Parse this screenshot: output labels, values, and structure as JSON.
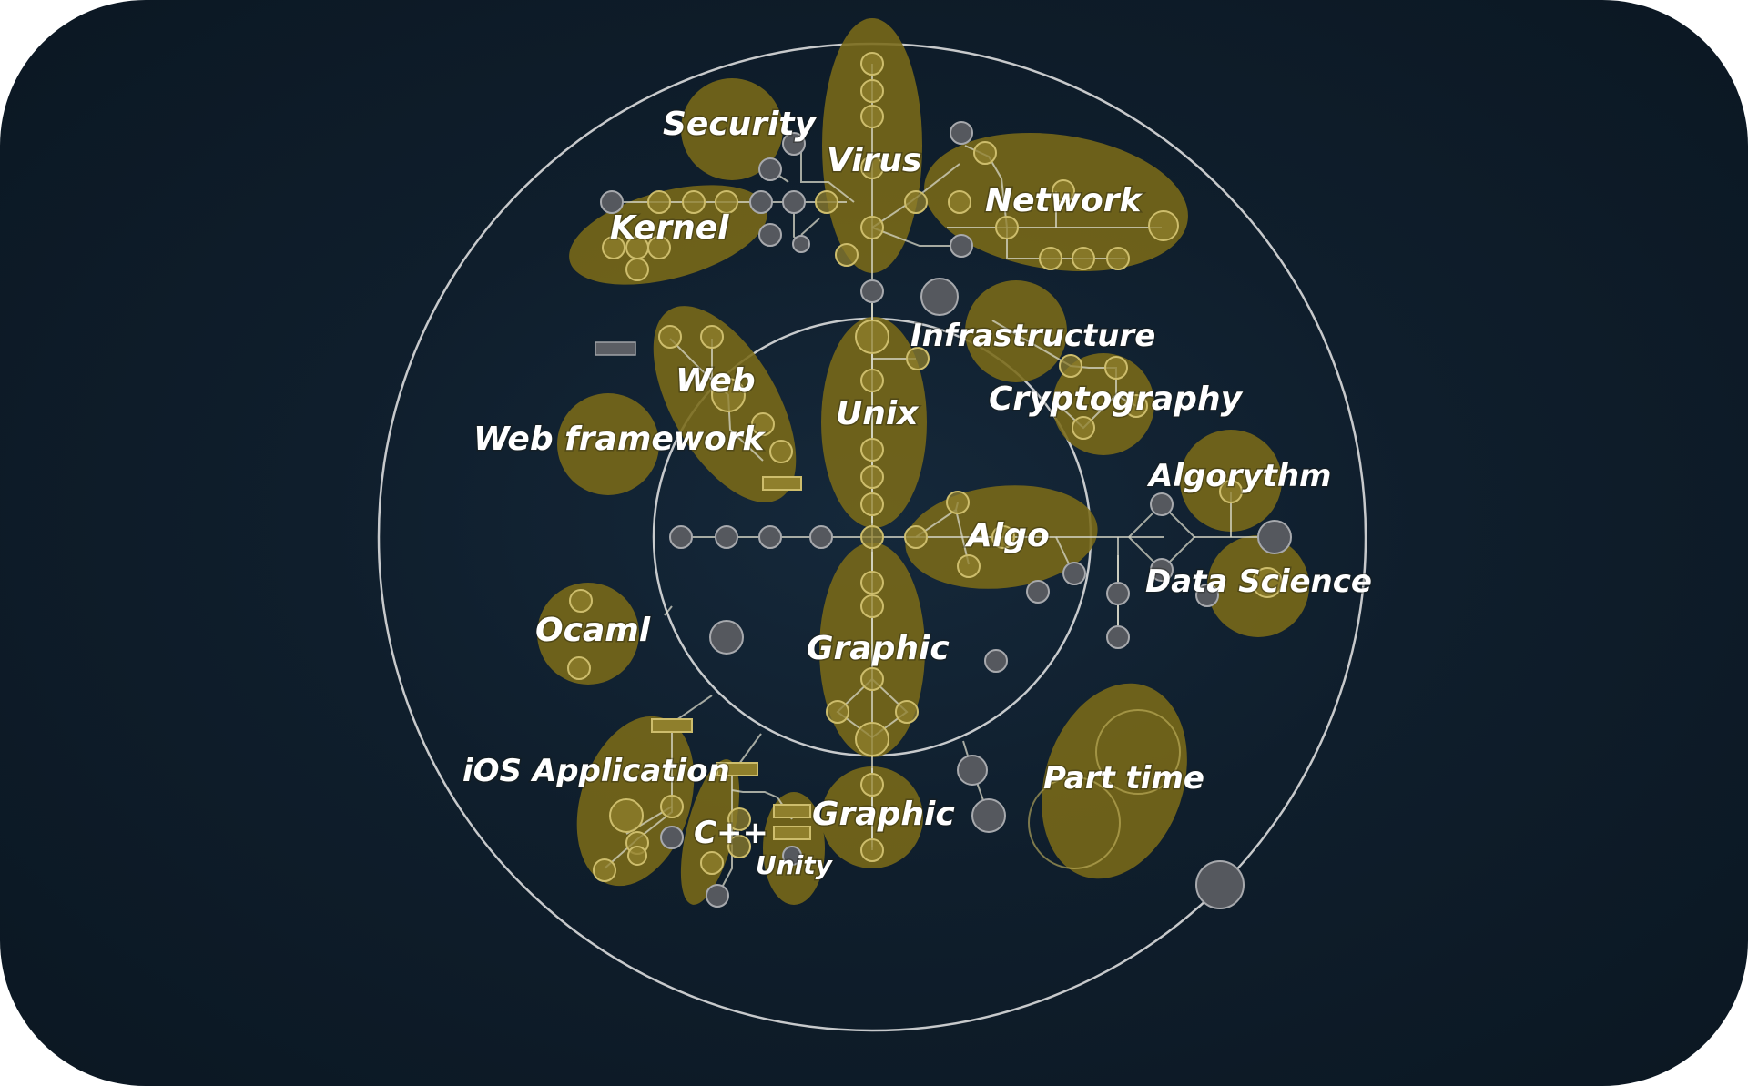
{
  "diagram": {
    "labels": {
      "security": "Security",
      "virus": "Virus",
      "network": "Network",
      "kernel": "Kernel",
      "infrastructure": "Infrastructure",
      "web": "Web",
      "unix": "Unix",
      "cryptography": "Cryptography",
      "web_framework": "Web framework",
      "algorythm": "Algorythm",
      "algo": "Algo",
      "data_science": "Data Science",
      "ocaml": "Ocaml",
      "graphic_inner": "Graphic",
      "ios_application": "iOS Application",
      "part_time": "Part time",
      "graphic_outer": "Graphic",
      "cpp": "C++",
      "unity": "Unity"
    },
    "colors": {
      "background": "#0f1e2c",
      "cluster_fill": "#7a6a18",
      "ring": "#e8e8e8",
      "node_grey": "#55585e"
    }
  }
}
